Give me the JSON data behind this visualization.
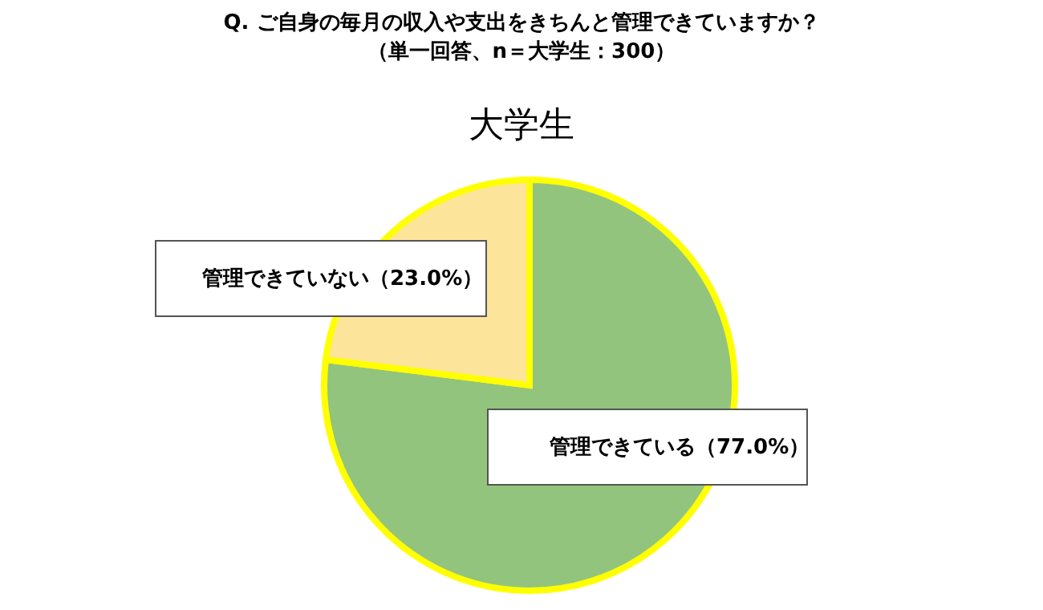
{
  "chart_data": {
    "type": "pie",
    "title": "Q. ご自身の毎月の収入や支出をきちんと管理できていますか？",
    "subtitle": "（単一回答、n＝大学生：300）",
    "annotations": [
      "大学生"
    ],
    "categories": [
      "管理できている",
      "管理できていない"
    ],
    "values": [
      77.0,
      23.0
    ],
    "colors": [
      "#93c47d",
      "#fde49b"
    ],
    "value_labels": [
      "（77.0%）",
      "（23.0%）"
    ]
  }
}
